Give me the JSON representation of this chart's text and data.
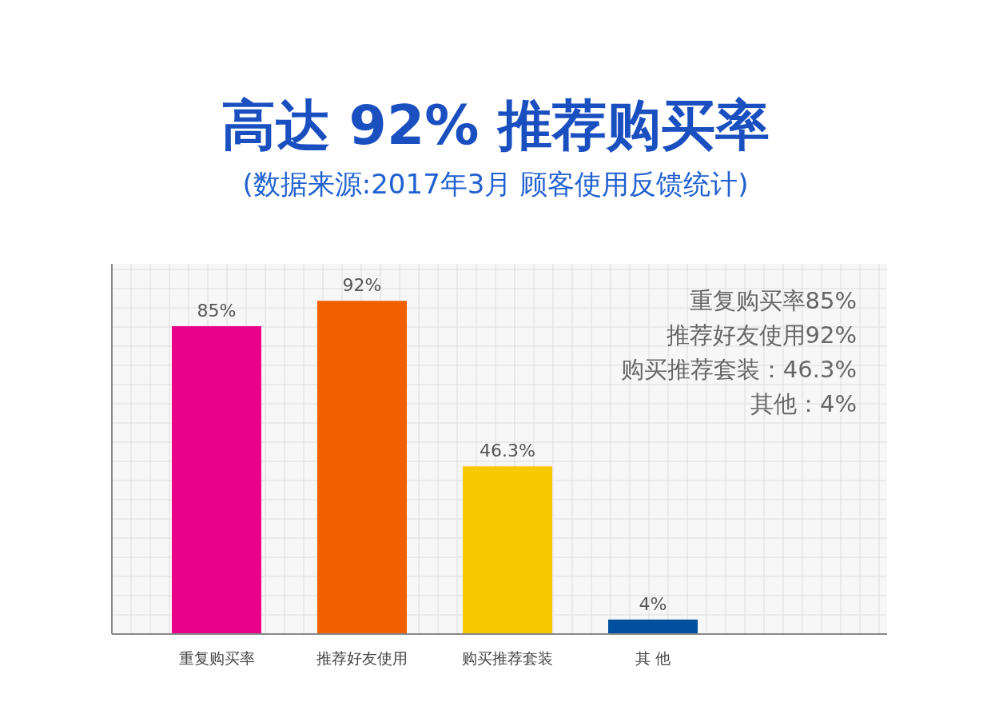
{
  "chart_data": {
    "type": "bar",
    "title": "高达 92% 推荐购买率",
    "subtitle": "(数据来源:2017年3月 顾客使用反馈统计)",
    "categories": [
      "重复购买率",
      "推荐好友使用",
      "购买推荐套装",
      "其 他"
    ],
    "values": [
      85,
      92,
      46.3,
      4
    ],
    "colors": [
      "#e8008a",
      "#f06000",
      "#f8c800",
      "#0050a0"
    ],
    "value_labels": [
      "85%",
      "92%",
      "46.3%",
      "4%"
    ],
    "ylim": [
      0,
      100
    ],
    "grid": true,
    "annotations": [
      "重复购买率85%",
      "推荐好友使用92%",
      "购买推荐套装：46.3%",
      "其他：4%"
    ]
  }
}
